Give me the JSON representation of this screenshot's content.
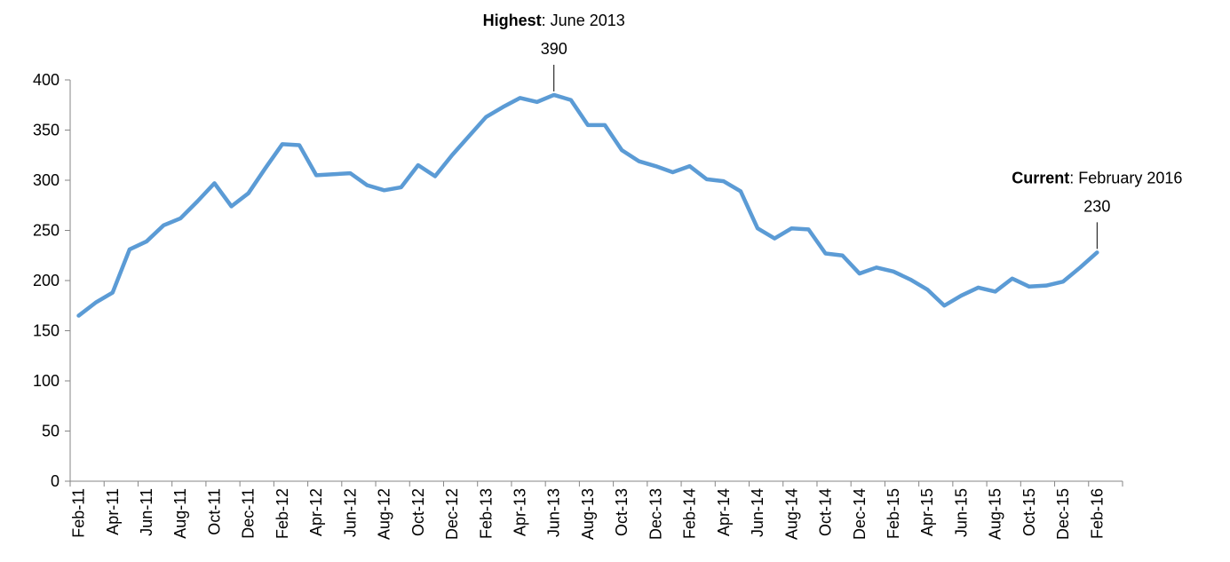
{
  "chart_data": {
    "type": "line",
    "categories": [
      "Feb-11",
      null,
      "Apr-11",
      null,
      "Jun-11",
      null,
      "Aug-11",
      null,
      "Oct-11",
      null,
      "Dec-11",
      null,
      "Feb-12",
      null,
      "Apr-12",
      null,
      "Jun-12",
      null,
      "Aug-12",
      null,
      "Oct-12",
      null,
      "Dec-12",
      null,
      "Feb-13",
      null,
      "Apr-13",
      null,
      "Jun-13",
      null,
      "Aug-13",
      null,
      "Oct-13",
      null,
      "Dec-13",
      null,
      "Feb-14",
      null,
      "Apr-14",
      null,
      "Jun-14",
      null,
      "Aug-14",
      null,
      "Oct-14",
      null,
      "Dec-14",
      null,
      "Feb-15",
      null,
      "Apr-15",
      null,
      "Jun-15",
      null,
      "Aug-15",
      null,
      "Oct-15",
      null,
      "Dec-15",
      null,
      "Feb-16",
      null
    ],
    "values": [
      165,
      178,
      188,
      231,
      239,
      255,
      262,
      279,
      297,
      274,
      287,
      312,
      336,
      335,
      305,
      306,
      307,
      295,
      290,
      293,
      315,
      304,
      325,
      344,
      363,
      373,
      382,
      378,
      385,
      380,
      355,
      355,
      330,
      319,
      314,
      308,
      314,
      301,
      299,
      289,
      252,
      242,
      252,
      251,
      227,
      225,
      207,
      213,
      209,
      201,
      191,
      175,
      185,
      193,
      189,
      202,
      194,
      195,
      199,
      213,
      228,
      null
    ],
    "color": "#5b9bd5",
    "ylim": [
      0,
      400
    ],
    "yticks": [
      0,
      50,
      100,
      150,
      200,
      250,
      300,
      350,
      400
    ],
    "grid": false,
    "annotations": [
      {
        "bold": "Highest",
        "text": ": June 2013",
        "value_label": "390"
      },
      {
        "bold": "Current",
        "text": ": February 2016",
        "value_label": "230"
      }
    ]
  }
}
